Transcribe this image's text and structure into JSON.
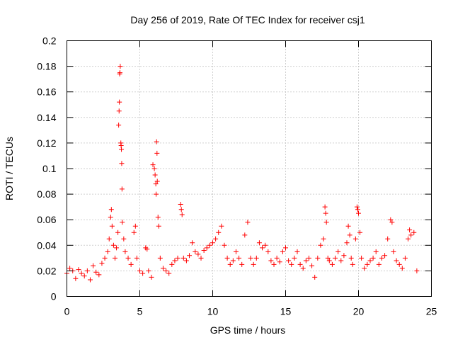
{
  "chart_data": {
    "type": "scatter",
    "title": "Day 256 of 2019, Rate Of TEC Index for receiver csj1",
    "xlabel": "GPS time / hours",
    "ylabel": "ROTI / TECUs",
    "xlim": [
      0,
      25
    ],
    "ylim": [
      0,
      0.2
    ],
    "xticks": [
      "0",
      "5",
      "10",
      "15",
      "20",
      "25"
    ],
    "yticks": [
      "0",
      "0.02",
      "0.04",
      "0.06",
      "0.08",
      "0.1",
      "0.12",
      "0.14",
      "0.16",
      "0.18",
      "0.2"
    ],
    "grid": true,
    "marker": "+",
    "color": "#ff0000",
    "series": [
      {
        "name": "ROTI",
        "points": [
          [
            0.0,
            0.018
          ],
          [
            0.2,
            0.022
          ],
          [
            0.4,
            0.02
          ],
          [
            0.6,
            0.014
          ],
          [
            0.8,
            0.021
          ],
          [
            1.0,
            0.018
          ],
          [
            1.2,
            0.016
          ],
          [
            1.4,
            0.02
          ],
          [
            1.6,
            0.013
          ],
          [
            1.8,
            0.024
          ],
          [
            2.0,
            0.019
          ],
          [
            2.2,
            0.017
          ],
          [
            2.4,
            0.026
          ],
          [
            2.6,
            0.03
          ],
          [
            2.8,
            0.035
          ],
          [
            2.9,
            0.045
          ],
          [
            3.0,
            0.062
          ],
          [
            3.05,
            0.068
          ],
          [
            3.1,
            0.055
          ],
          [
            3.2,
            0.04
          ],
          [
            3.3,
            0.03
          ],
          [
            3.4,
            0.038
          ],
          [
            3.5,
            0.05
          ],
          [
            3.55,
            0.134
          ],
          [
            3.58,
            0.145
          ],
          [
            3.6,
            0.152
          ],
          [
            3.62,
            0.174
          ],
          [
            3.64,
            0.175
          ],
          [
            3.66,
            0.18
          ],
          [
            3.7,
            0.12
          ],
          [
            3.72,
            0.118
          ],
          [
            3.74,
            0.115
          ],
          [
            3.76,
            0.104
          ],
          [
            3.78,
            0.084
          ],
          [
            3.8,
            0.058
          ],
          [
            3.9,
            0.045
          ],
          [
            4.0,
            0.035
          ],
          [
            4.2,
            0.03
          ],
          [
            4.4,
            0.025
          ],
          [
            4.6,
            0.05
          ],
          [
            4.7,
            0.055
          ],
          [
            4.8,
            0.03
          ],
          [
            5.0,
            0.02
          ],
          [
            5.2,
            0.018
          ],
          [
            5.4,
            0.038
          ],
          [
            5.5,
            0.037
          ],
          [
            5.6,
            0.02
          ],
          [
            5.8,
            0.015
          ],
          [
            5.9,
            0.103
          ],
          [
            6.0,
            0.1
          ],
          [
            6.05,
            0.095
          ],
          [
            6.1,
            0.088
          ],
          [
            6.12,
            0.08
          ],
          [
            6.15,
            0.121
          ],
          [
            6.18,
            0.112
          ],
          [
            6.2,
            0.09
          ],
          [
            6.25,
            0.062
          ],
          [
            6.3,
            0.055
          ],
          [
            6.4,
            0.03
          ],
          [
            6.6,
            0.022
          ],
          [
            6.8,
            0.02
          ],
          [
            7.0,
            0.018
          ],
          [
            7.2,
            0.025
          ],
          [
            7.4,
            0.028
          ],
          [
            7.6,
            0.03
          ],
          [
            7.8,
            0.072
          ],
          [
            7.85,
            0.068
          ],
          [
            7.9,
            0.064
          ],
          [
            8.0,
            0.03
          ],
          [
            8.2,
            0.028
          ],
          [
            8.4,
            0.032
          ],
          [
            8.6,
            0.042
          ],
          [
            8.8,
            0.035
          ],
          [
            9.0,
            0.033
          ],
          [
            9.2,
            0.03
          ],
          [
            9.4,
            0.036
          ],
          [
            9.6,
            0.038
          ],
          [
            9.8,
            0.04
          ],
          [
            10.0,
            0.042
          ],
          [
            10.2,
            0.045
          ],
          [
            10.4,
            0.05
          ],
          [
            10.6,
            0.055
          ],
          [
            10.8,
            0.04
          ],
          [
            11.0,
            0.03
          ],
          [
            11.2,
            0.025
          ],
          [
            11.4,
            0.028
          ],
          [
            11.6,
            0.035
          ],
          [
            11.8,
            0.03
          ],
          [
            12.0,
            0.025
          ],
          [
            12.2,
            0.048
          ],
          [
            12.4,
            0.058
          ],
          [
            12.6,
            0.03
          ],
          [
            12.8,
            0.025
          ],
          [
            13.0,
            0.03
          ],
          [
            13.2,
            0.042
          ],
          [
            13.4,
            0.038
          ],
          [
            13.6,
            0.04
          ],
          [
            13.8,
            0.035
          ],
          [
            14.0,
            0.028
          ],
          [
            14.2,
            0.025
          ],
          [
            14.4,
            0.03
          ],
          [
            14.6,
            0.027
          ],
          [
            14.8,
            0.035
          ],
          [
            15.0,
            0.038
          ],
          [
            15.2,
            0.028
          ],
          [
            15.4,
            0.025
          ],
          [
            15.6,
            0.03
          ],
          [
            15.8,
            0.035
          ],
          [
            16.0,
            0.025
          ],
          [
            16.2,
            0.022
          ],
          [
            16.4,
            0.028
          ],
          [
            16.6,
            0.03
          ],
          [
            16.8,
            0.024
          ],
          [
            17.0,
            0.015
          ],
          [
            17.2,
            0.03
          ],
          [
            17.4,
            0.04
          ],
          [
            17.6,
            0.045
          ],
          [
            17.7,
            0.07
          ],
          [
            17.75,
            0.065
          ],
          [
            17.8,
            0.058
          ],
          [
            17.9,
            0.03
          ],
          [
            18.0,
            0.028
          ],
          [
            18.2,
            0.025
          ],
          [
            18.4,
            0.03
          ],
          [
            18.6,
            0.035
          ],
          [
            18.8,
            0.028
          ],
          [
            19.0,
            0.032
          ],
          [
            19.2,
            0.042
          ],
          [
            19.3,
            0.055
          ],
          [
            19.4,
            0.048
          ],
          [
            19.5,
            0.03
          ],
          [
            19.6,
            0.025
          ],
          [
            19.8,
            0.045
          ],
          [
            19.9,
            0.07
          ],
          [
            19.95,
            0.068
          ],
          [
            20.0,
            0.065
          ],
          [
            20.1,
            0.05
          ],
          [
            20.2,
            0.03
          ],
          [
            20.4,
            0.022
          ],
          [
            20.6,
            0.025
          ],
          [
            20.8,
            0.028
          ],
          [
            21.0,
            0.03
          ],
          [
            21.2,
            0.035
          ],
          [
            21.4,
            0.025
          ],
          [
            21.6,
            0.03
          ],
          [
            21.8,
            0.032
          ],
          [
            22.0,
            0.045
          ],
          [
            22.2,
            0.06
          ],
          [
            22.3,
            0.058
          ],
          [
            22.4,
            0.035
          ],
          [
            22.6,
            0.028
          ],
          [
            22.8,
            0.025
          ],
          [
            23.0,
            0.022
          ],
          [
            23.2,
            0.03
          ],
          [
            23.4,
            0.045
          ],
          [
            23.5,
            0.052
          ],
          [
            23.6,
            0.048
          ],
          [
            23.8,
            0.05
          ],
          [
            24.0,
            0.02
          ]
        ]
      }
    ]
  }
}
